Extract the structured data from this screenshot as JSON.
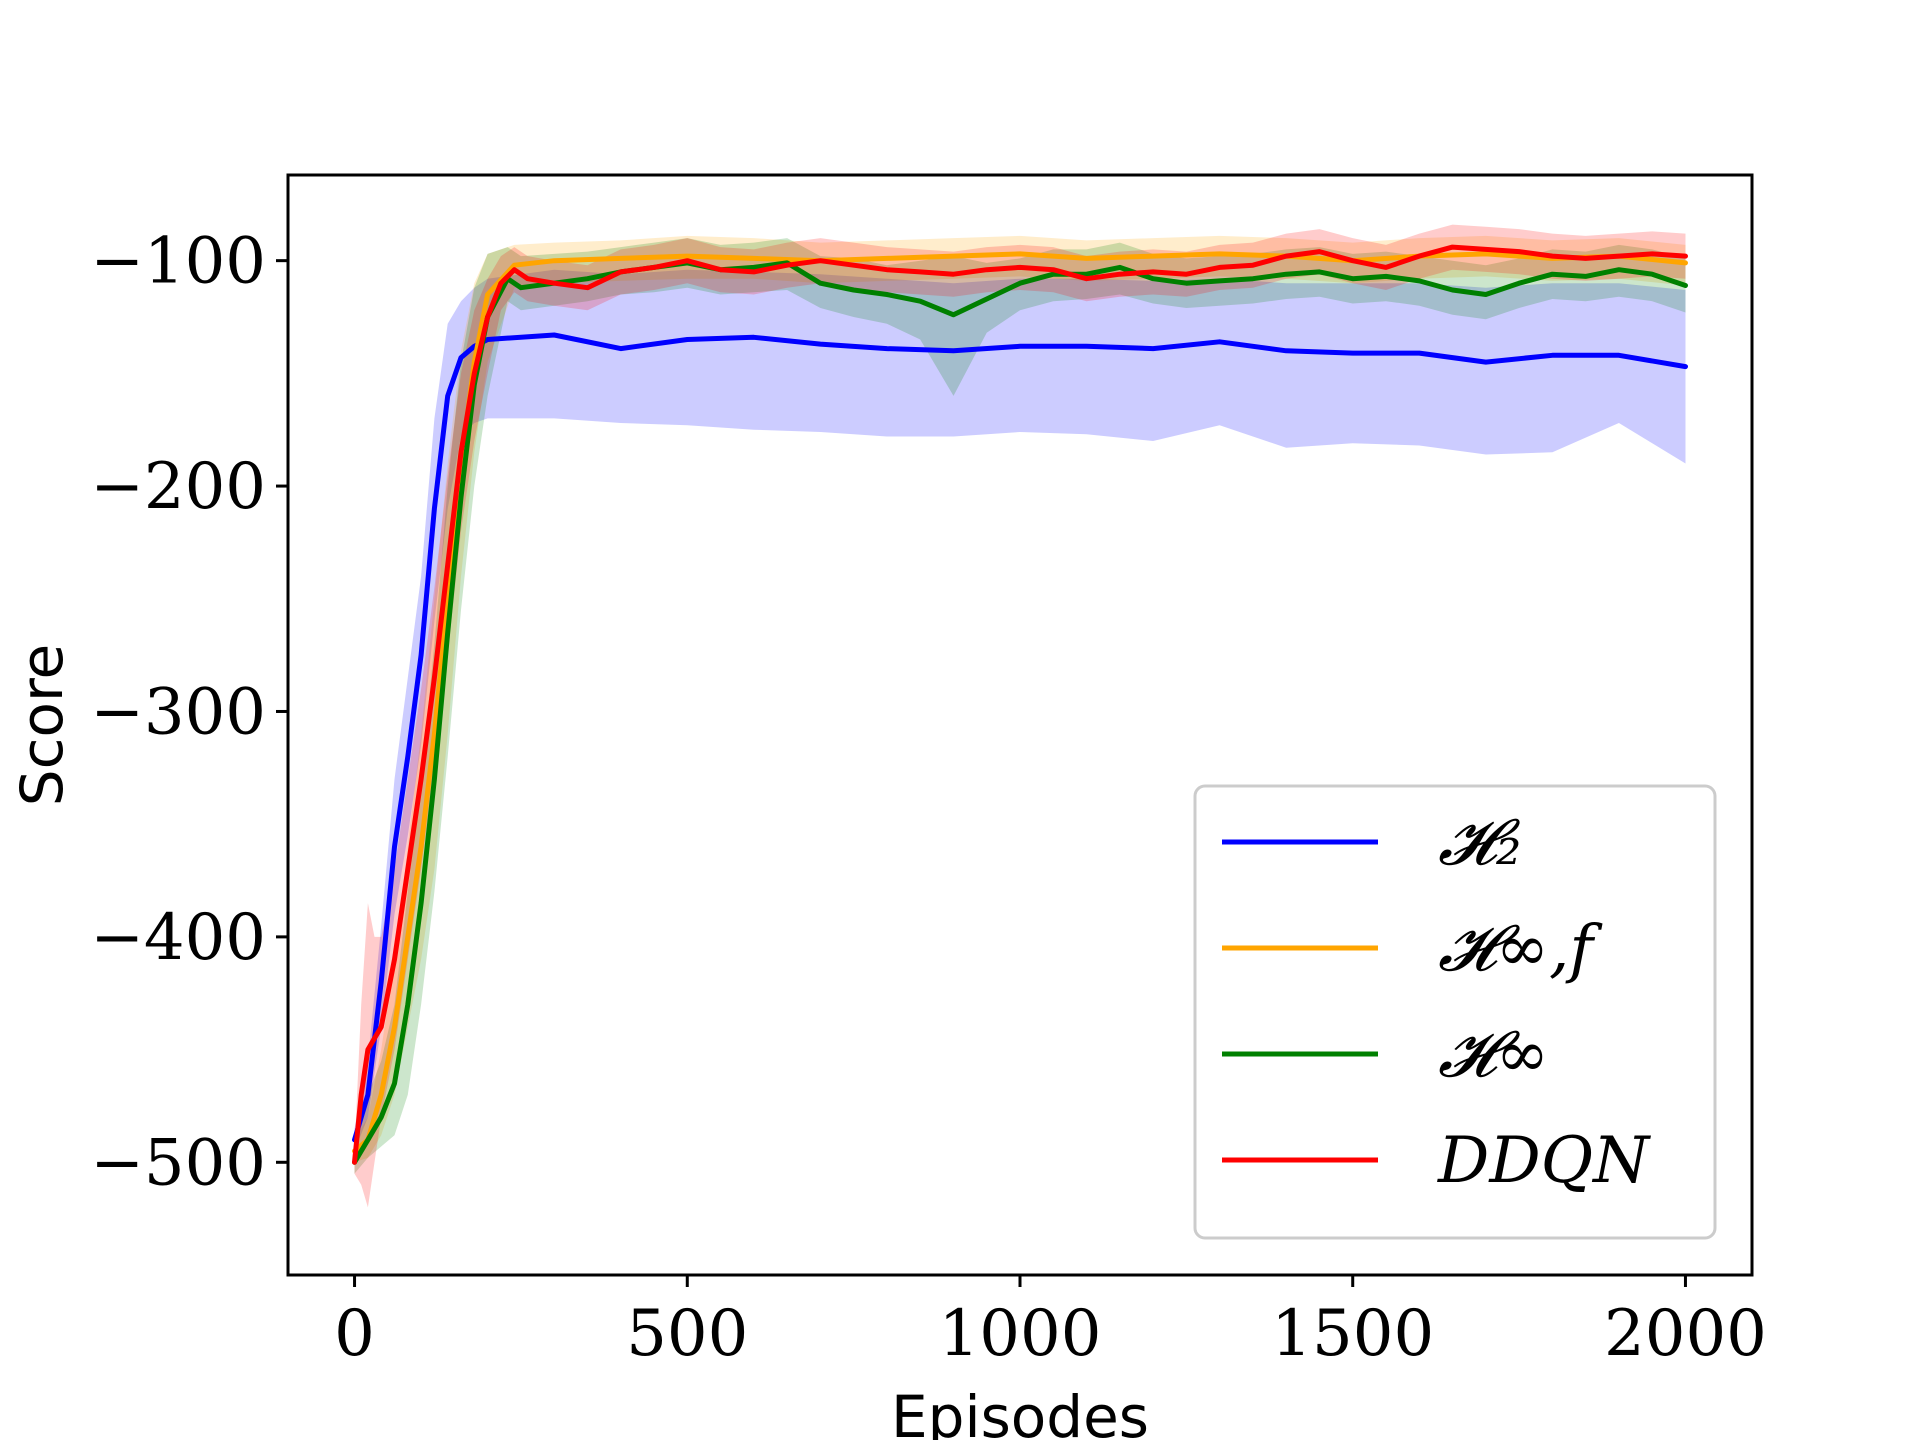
{
  "chart_data": {
    "type": "line",
    "title": "",
    "xlabel": "Episodes",
    "ylabel": "Score",
    "xlim": [
      -100,
      2100
    ],
    "ylim": [
      -550,
      -62
    ],
    "xticks": [
      0,
      500,
      1000,
      1500,
      2000
    ],
    "xtick_labels": [
      "0",
      "500",
      "1000",
      "1500",
      "2000"
    ],
    "yticks": [
      -500,
      -400,
      -300,
      -200,
      -100
    ],
    "ytick_labels": [
      "−500",
      "−400",
      "−300",
      "−200",
      "−100"
    ],
    "grid": false,
    "legend_position": "lower-right",
    "series": [
      {
        "name": "H2",
        "legend_label": "𝓗₂",
        "color": "#0000ff",
        "x": [
          0,
          20,
          40,
          60,
          80,
          100,
          120,
          140,
          160,
          180,
          200,
          300,
          400,
          500,
          600,
          700,
          800,
          900,
          1000,
          1100,
          1200,
          1300,
          1400,
          1500,
          1600,
          1700,
          1800,
          1900,
          2000
        ],
        "y": [
          -490,
          -470,
          -420,
          -360,
          -320,
          -275,
          -210,
          -160,
          -143,
          -138,
          -135,
          -133,
          -139,
          -135,
          -134,
          -137,
          -139,
          -140,
          -138,
          -138,
          -139,
          -136,
          -140,
          -141,
          -141,
          -145,
          -142,
          -142,
          -147
        ],
        "lower": [
          -495,
          -480,
          -440,
          -390,
          -355,
          -315,
          -260,
          -210,
          -178,
          -172,
          -170,
          -170,
          -172,
          -173,
          -175,
          -176,
          -178,
          -178,
          -176,
          -177,
          -180,
          -173,
          -183,
          -181,
          -182,
          -186,
          -185,
          -172,
          -190
        ],
        "upper": [
          -485,
          -455,
          -395,
          -330,
          -285,
          -240,
          -170,
          -128,
          -118,
          -112,
          -108,
          -104,
          -106,
          -104,
          -105,
          -106,
          -108,
          -110,
          -108,
          -108,
          -109,
          -108,
          -110,
          -110,
          -110,
          -112,
          -110,
          -110,
          -113
        ]
      },
      {
        "name": "Hinf,f",
        "legend_label": "𝓗∞,f",
        "color": "#ffa500",
        "x": [
          0,
          20,
          40,
          60,
          80,
          100,
          120,
          140,
          160,
          180,
          200,
          240,
          300,
          400,
          500,
          600,
          700,
          800,
          900,
          1000,
          1100,
          1200,
          1300,
          1400,
          1500,
          1600,
          1700,
          1800,
          1900,
          2000
        ],
        "y": [
          -495,
          -490,
          -470,
          -440,
          -400,
          -360,
          -310,
          -250,
          -190,
          -145,
          -115,
          -102,
          -100,
          -99,
          -98,
          -99,
          -100,
          -99,
          -98,
          -97,
          -99,
          -98,
          -97,
          -98,
          -100,
          -98,
          -97,
          -99,
          -98,
          -101
        ],
        "lower": [
          -500,
          -498,
          -488,
          -470,
          -440,
          -410,
          -370,
          -310,
          -240,
          -185,
          -145,
          -112,
          -110,
          -109,
          -108,
          -108,
          -110,
          -109,
          -108,
          -107,
          -109,
          -108,
          -107,
          -108,
          -110,
          -108,
          -107,
          -109,
          -108,
          -111
        ],
        "upper": [
          -490,
          -480,
          -450,
          -410,
          -360,
          -310,
          -250,
          -190,
          -140,
          -110,
          -97,
          -93,
          -92,
          -91,
          -89,
          -90,
          -92,
          -91,
          -90,
          -89,
          -91,
          -90,
          -89,
          -90,
          -92,
          -90,
          -89,
          -91,
          -90,
          -93
        ]
      },
      {
        "name": "Hinf",
        "legend_label": "𝓗∞",
        "color": "#008000",
        "x": [
          0,
          20,
          40,
          60,
          80,
          100,
          120,
          140,
          160,
          180,
          200,
          230,
          250,
          300,
          350,
          400,
          450,
          500,
          550,
          600,
          650,
          700,
          750,
          800,
          850,
          900,
          950,
          1000,
          1050,
          1100,
          1150,
          1200,
          1250,
          1300,
          1350,
          1400,
          1450,
          1500,
          1550,
          1600,
          1650,
          1700,
          1750,
          1800,
          1850,
          1900,
          1950,
          2000
        ],
        "y": [
          -500,
          -490,
          -480,
          -465,
          -430,
          -385,
          -330,
          -265,
          -205,
          -155,
          -125,
          -108,
          -112,
          -110,
          -108,
          -105,
          -103,
          -101,
          -104,
          -103,
          -101,
          -110,
          -113,
          -115,
          -118,
          -124,
          -117,
          -110,
          -106,
          -106,
          -103,
          -108,
          -110,
          -109,
          -108,
          -106,
          -105,
          -108,
          -107,
          -109,
          -113,
          -115,
          -110,
          -106,
          -107,
          -104,
          -106,
          -111
        ],
        "lower": [
          -505,
          -498,
          -493,
          -488,
          -470,
          -430,
          -380,
          -320,
          -255,
          -200,
          -160,
          -118,
          -122,
          -120,
          -118,
          -115,
          -114,
          -112,
          -115,
          -114,
          -113,
          -121,
          -125,
          -128,
          -135,
          -160,
          -132,
          -122,
          -118,
          -117,
          -115,
          -119,
          -121,
          -120,
          -119,
          -117,
          -116,
          -119,
          -118,
          -120,
          -124,
          -126,
          -121,
          -117,
          -118,
          -116,
          -118,
          -123
        ],
        "upper": [
          -490,
          -470,
          -455,
          -430,
          -380,
          -330,
          -270,
          -200,
          -145,
          -112,
          -97,
          -94,
          -98,
          -97,
          -96,
          -94,
          -92,
          -90,
          -93,
          -92,
          -90,
          -98,
          -99,
          -102,
          -100,
          -98,
          -101,
          -99,
          -95,
          -95,
          -92,
          -97,
          -99,
          -98,
          -97,
          -95,
          -94,
          -97,
          -96,
          -98,
          -100,
          -102,
          -99,
          -95,
          -96,
          -93,
          -95,
          -99
        ]
      },
      {
        "name": "DDQN",
        "legend_label": "DDQN",
        "color": "#ff0000",
        "x": [
          0,
          10,
          20,
          30,
          40,
          60,
          80,
          100,
          120,
          140,
          160,
          180,
          200,
          220,
          240,
          260,
          300,
          350,
          400,
          450,
          500,
          550,
          600,
          650,
          700,
          750,
          800,
          850,
          900,
          950,
          1000,
          1050,
          1100,
          1150,
          1200,
          1250,
          1300,
          1350,
          1400,
          1450,
          1500,
          1550,
          1600,
          1650,
          1700,
          1750,
          1800,
          1850,
          1900,
          1950,
          2000
        ],
        "y": [
          -500,
          -470,
          -450,
          -445,
          -440,
          -410,
          -370,
          -330,
          -285,
          -235,
          -185,
          -150,
          -125,
          -110,
          -104,
          -108,
          -110,
          -112,
          -105,
          -103,
          -100,
          -104,
          -105,
          -102,
          -100,
          -102,
          -104,
          -105,
          -106,
          -104,
          -103,
          -104,
          -108,
          -106,
          -105,
          -106,
          -103,
          -102,
          -98,
          -96,
          -100,
          -103,
          -98,
          -94,
          -95,
          -96,
          -98,
          -99,
          -98,
          -97,
          -98
        ],
        "lower": [
          -505,
          -510,
          -520,
          -500,
          -480,
          -450,
          -410,
          -370,
          -325,
          -275,
          -220,
          -180,
          -150,
          -122,
          -114,
          -118,
          -120,
          -122,
          -115,
          -113,
          -110,
          -114,
          -115,
          -112,
          -110,
          -112,
          -114,
          -115,
          -116,
          -114,
          -113,
          -114,
          -118,
          -116,
          -115,
          -116,
          -113,
          -112,
          -108,
          -106,
          -110,
          -113,
          -108,
          -104,
          -105,
          -106,
          -108,
          -109,
          -108,
          -107,
          -108
        ],
        "upper": [
          -495,
          -430,
          -385,
          -400,
          -400,
          -370,
          -330,
          -290,
          -245,
          -195,
          -150,
          -122,
          -108,
          -98,
          -94,
          -98,
          -100,
          -102,
          -95,
          -93,
          -90,
          -94,
          -95,
          -92,
          -90,
          -92,
          -94,
          -95,
          -96,
          -94,
          -93,
          -94,
          -98,
          -96,
          -95,
          -96,
          -93,
          -92,
          -88,
          -86,
          -90,
          -93,
          -88,
          -84,
          -85,
          -86,
          -88,
          -89,
          -88,
          -87,
          -88
        ]
      }
    ]
  }
}
